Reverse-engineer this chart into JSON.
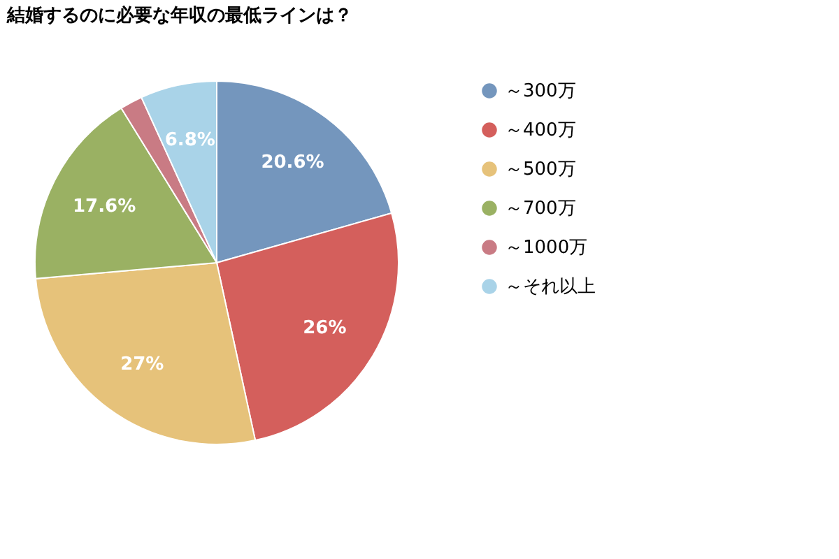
{
  "chart_data": {
    "type": "pie",
    "title": "結婚するのに必要な年収の最低ラインは？",
    "categories": [
      "～300万",
      "～400万",
      "～500万",
      "～700万",
      "～1000万",
      "～それ以上"
    ],
    "values": [
      20.6,
      26,
      27,
      17.6,
      2.0,
      6.8
    ],
    "colors": [
      "#7496bd",
      "#d45f5c",
      "#e6c27a",
      "#9ab163",
      "#c97b84",
      "#a9d3e8"
    ],
    "value_labels": [
      "20.6%",
      "26%",
      "27%",
      "17.6%",
      null,
      "6.8%"
    ],
    "legend": "right"
  }
}
